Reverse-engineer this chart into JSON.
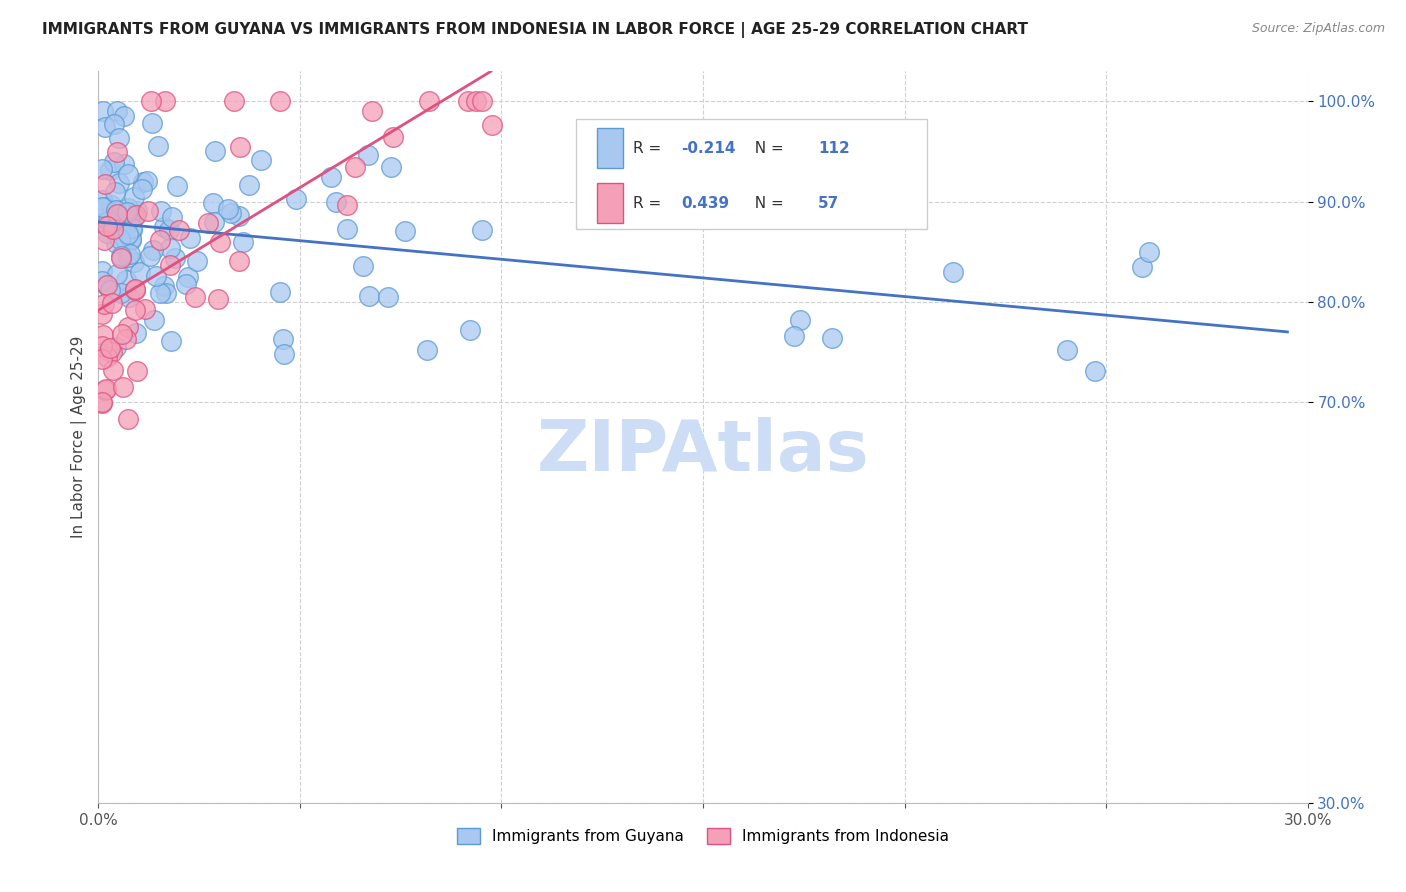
{
  "title": "IMMIGRANTS FROM GUYANA VS IMMIGRANTS FROM INDONESIA IN LABOR FORCE | AGE 25-29 CORRELATION CHART",
  "source": "Source: ZipAtlas.com",
  "ylabel": "In Labor Force | Age 25-29",
  "xlim": [
    0.0,
    0.3
  ],
  "ylim": [
    0.3,
    1.03
  ],
  "guyana_color": "#a8c8f0",
  "indonesia_color": "#f4a0b8",
  "guyana_edge": "#5b9bd5",
  "indonesia_edge": "#e05080",
  "trendline_guyana": "#4472c4",
  "trendline_indonesia": "#e05080",
  "legend_r_guyana": "-0.214",
  "legend_n_guyana": "112",
  "legend_r_indonesia": "0.439",
  "legend_n_indonesia": "57",
  "background_color": "#ffffff",
  "grid_color": "#d0d0d0",
  "watermark_color": "#ccddf5",
  "title_color": "#222222",
  "source_color": "#888888",
  "ylabel_color": "#444444",
  "ytick_color": "#4472c4",
  "xtick_color": "#555555"
}
